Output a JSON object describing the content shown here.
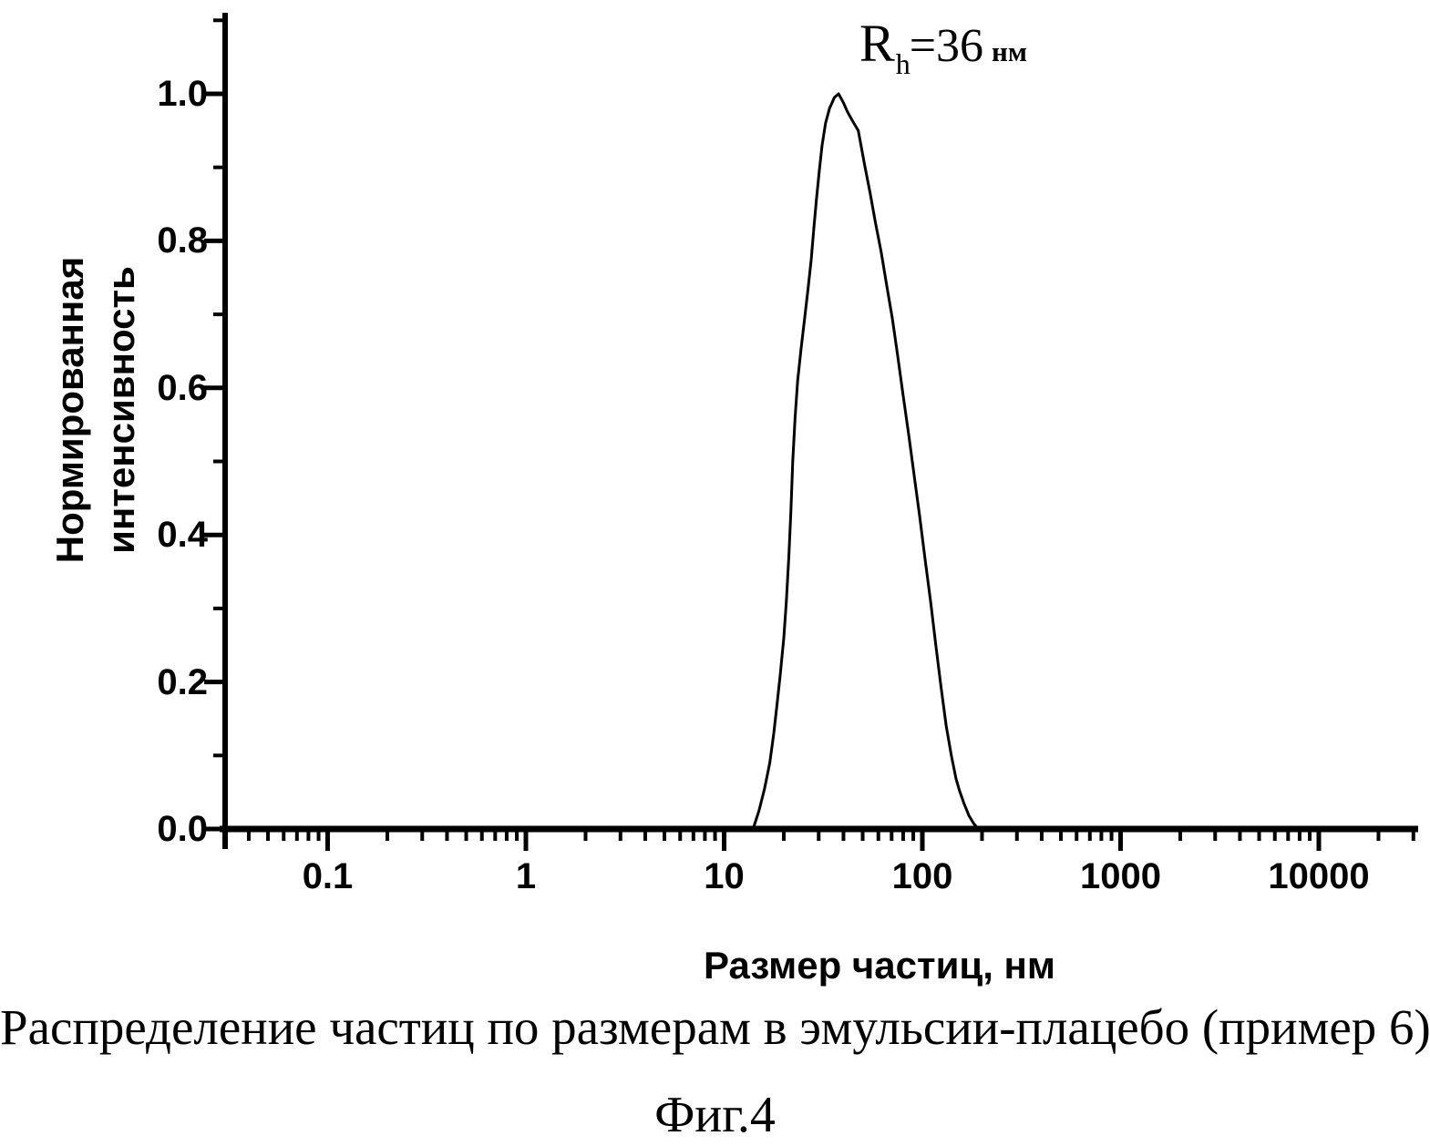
{
  "caption": "Распределение частиц по размерам в эмульсии-плацебо (пример 6)",
  "figure_label": "Фиг.4",
  "annotation": {
    "symbol": "R",
    "subscript": "h",
    "value": "=36",
    "unit": "нм"
  },
  "colors": {
    "ink": "#000000",
    "background": "#ffffff"
  },
  "chart_data": {
    "type": "line",
    "title": "",
    "xlabel": "Размер частиц, нм",
    "ylabel": "Нормированная интенсивность",
    "ylabel_lines": [
      "Нормированная",
      "интенсивность"
    ],
    "x_scale": "log",
    "y_scale": "linear",
    "xlim": [
      0.03,
      30000
    ],
    "ylim": [
      0.0,
      1.1
    ],
    "grid": false,
    "legend_position": "none",
    "x_ticks": [
      "0.1",
      "1",
      "10",
      "100",
      "1000",
      "10000"
    ],
    "x_tick_values": [
      0.1,
      1,
      10,
      100,
      1000,
      10000
    ],
    "y_ticks": [
      "0.0",
      "0.2",
      "0.4",
      "0.6",
      "0.8",
      "1.0"
    ],
    "y_tick_values": [
      0.0,
      0.2,
      0.4,
      0.6,
      0.8,
      1.0
    ],
    "y_minor_tick_values": [
      0.1,
      0.3,
      0.5,
      0.7,
      0.9,
      1.1
    ],
    "peak": {
      "size_nm": 36,
      "intensity": 1.0
    },
    "series": [
      {
        "name": "Нормированная интенсивность",
        "points": [
          [
            14,
            0.0
          ],
          [
            15,
            0.025
          ],
          [
            16,
            0.055
          ],
          [
            17,
            0.09
          ],
          [
            17.8,
            0.13
          ],
          [
            18.5,
            0.17
          ],
          [
            19.2,
            0.21
          ],
          [
            20,
            0.26
          ],
          [
            20.6,
            0.31
          ],
          [
            21.2,
            0.37
          ],
          [
            21.7,
            0.43
          ],
          [
            22.2,
            0.5
          ],
          [
            22.8,
            0.56
          ],
          [
            23.5,
            0.61
          ],
          [
            24.5,
            0.655
          ],
          [
            25.5,
            0.695
          ],
          [
            26.5,
            0.735
          ],
          [
            27.5,
            0.775
          ],
          [
            28.3,
            0.815
          ],
          [
            29.2,
            0.855
          ],
          [
            30.2,
            0.895
          ],
          [
            31.2,
            0.93
          ],
          [
            32.5,
            0.96
          ],
          [
            34,
            0.98
          ],
          [
            36,
            0.995
          ],
          [
            37.8,
            1.0
          ],
          [
            40,
            0.988
          ],
          [
            42,
            0.975
          ],
          [
            44.5,
            0.963
          ],
          [
            47.5,
            0.95
          ],
          [
            51,
            0.905
          ],
          [
            54.5,
            0.865
          ],
          [
            58,
            0.825
          ],
          [
            62,
            0.785
          ],
          [
            66,
            0.74
          ],
          [
            70.5,
            0.695
          ],
          [
            75,
            0.645
          ],
          [
            80,
            0.59
          ],
          [
            85.5,
            0.535
          ],
          [
            91,
            0.48
          ],
          [
            97,
            0.425
          ],
          [
            103.5,
            0.365
          ],
          [
            110,
            0.31
          ],
          [
            117,
            0.25
          ],
          [
            124,
            0.195
          ],
          [
            132,
            0.14
          ],
          [
            140,
            0.1
          ],
          [
            148,
            0.068
          ],
          [
            154,
            0.052
          ],
          [
            162,
            0.035
          ],
          [
            172,
            0.018
          ],
          [
            182,
            0.007
          ],
          [
            192,
            0.0
          ]
        ]
      }
    ]
  }
}
